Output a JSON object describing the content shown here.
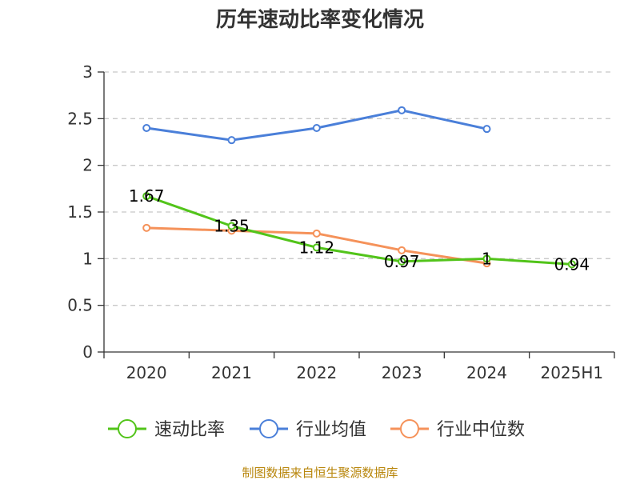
{
  "chart_data": {
    "type": "line",
    "title": "历年速动比率变化情况",
    "categories": [
      "2020",
      "2021",
      "2022",
      "2023",
      "2024",
      "2025H1"
    ],
    "ylim": [
      0,
      3
    ],
    "yticks": [
      "0",
      "0.5",
      "1",
      "1.5",
      "2",
      "2.5",
      "3"
    ],
    "grid": true,
    "legend_position": "bottom",
    "series": [
      {
        "name": "速动比率",
        "color": "#52c41a",
        "values": [
          1.67,
          1.35,
          1.12,
          0.97,
          1.0,
          0.94
        ],
        "labels": [
          "1.67",
          "1.35",
          "1.12",
          "0.97",
          "1",
          "0.94"
        ]
      },
      {
        "name": "行业均值",
        "color": "#4a7fd9",
        "values": [
          2.4,
          2.27,
          2.4,
          2.59,
          2.39,
          null
        ]
      },
      {
        "name": "行业中位数",
        "color": "#f5925a",
        "values": [
          1.33,
          1.3,
          1.27,
          1.09,
          0.95,
          null
        ]
      }
    ]
  },
  "source": "制图数据来自恒生聚源数据库"
}
